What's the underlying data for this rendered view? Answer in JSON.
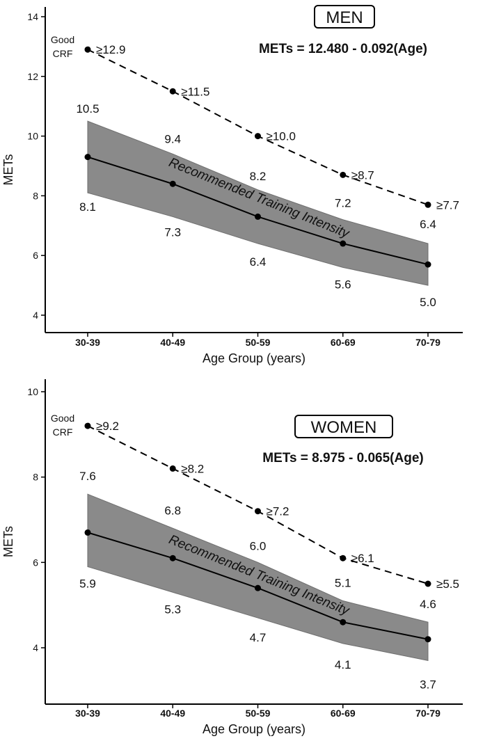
{
  "chart_data": [
    {
      "type": "line",
      "panel": "men",
      "title": "MEN",
      "equation": "METs = 12.480 - 0.092(Age)",
      "xlabel": "Age Group (years)",
      "ylabel": "METs",
      "categories": [
        "30-39",
        "40-49",
        "50-59",
        "60-69",
        "70-79"
      ],
      "ylim": [
        3.5,
        14.5
      ],
      "yticks": [
        4,
        6,
        8,
        10,
        12,
        14
      ],
      "good_crf_label": [
        "Good",
        "CRF"
      ],
      "band_label": "Recommended Training Intensity",
      "series": [
        {
          "name": "Good CRF",
          "style": "dashed",
          "values": [
            12.9,
            11.5,
            10.0,
            8.7,
            7.7
          ],
          "labels": [
            "≥12.9",
            "≥11.5",
            "≥10.0",
            "≥8.7",
            "≥7.7"
          ]
        },
        {
          "name": "Recommended",
          "style": "solid",
          "values": [
            9.3,
            8.4,
            7.3,
            6.4,
            5.7
          ]
        },
        {
          "name": "Upper",
          "values": [
            10.5,
            9.4,
            8.2,
            7.2,
            6.4
          ],
          "labels": [
            "10.5",
            "9.4",
            "8.2",
            "7.2",
            "6.4"
          ]
        },
        {
          "name": "Lower",
          "values": [
            8.1,
            7.3,
            6.4,
            5.6,
            5.0
          ],
          "labels": [
            "8.1",
            "7.3",
            "6.4",
            "5.6",
            "5.0"
          ]
        }
      ]
    },
    {
      "type": "line",
      "panel": "women",
      "title": "WOMEN",
      "equation": "METs = 8.975 - 0.065(Age)",
      "xlabel": "Age Group (years)",
      "ylabel": "METs",
      "categories": [
        "30-39",
        "40-49",
        "50-59",
        "60-69",
        "70-79"
      ],
      "ylim": [
        2.7,
        10.4
      ],
      "yticks": [
        4,
        6,
        8,
        10
      ],
      "good_crf_label": [
        "Good",
        "CRF"
      ],
      "band_label": "Recommended Training Intensity",
      "series": [
        {
          "name": "Good CRF",
          "style": "dashed",
          "values": [
            9.2,
            8.2,
            7.2,
            6.1,
            5.5
          ],
          "labels": [
            "≥9.2",
            "≥8.2",
            "≥7.2",
            "≥6.1",
            "≥5.5"
          ]
        },
        {
          "name": "Recommended",
          "style": "solid",
          "values": [
            6.7,
            6.1,
            5.4,
            4.6,
            4.2
          ]
        },
        {
          "name": "Upper",
          "values": [
            7.6,
            6.8,
            6.0,
            5.1,
            4.6
          ],
          "labels": [
            "7.6",
            "6.8",
            "6.0",
            "5.1",
            "4.6"
          ]
        },
        {
          "name": "Lower",
          "values": [
            5.9,
            5.3,
            4.7,
            4.1,
            3.7
          ],
          "labels": [
            "5.9",
            "5.3",
            "4.7",
            "4.1",
            "3.7"
          ]
        }
      ]
    }
  ]
}
